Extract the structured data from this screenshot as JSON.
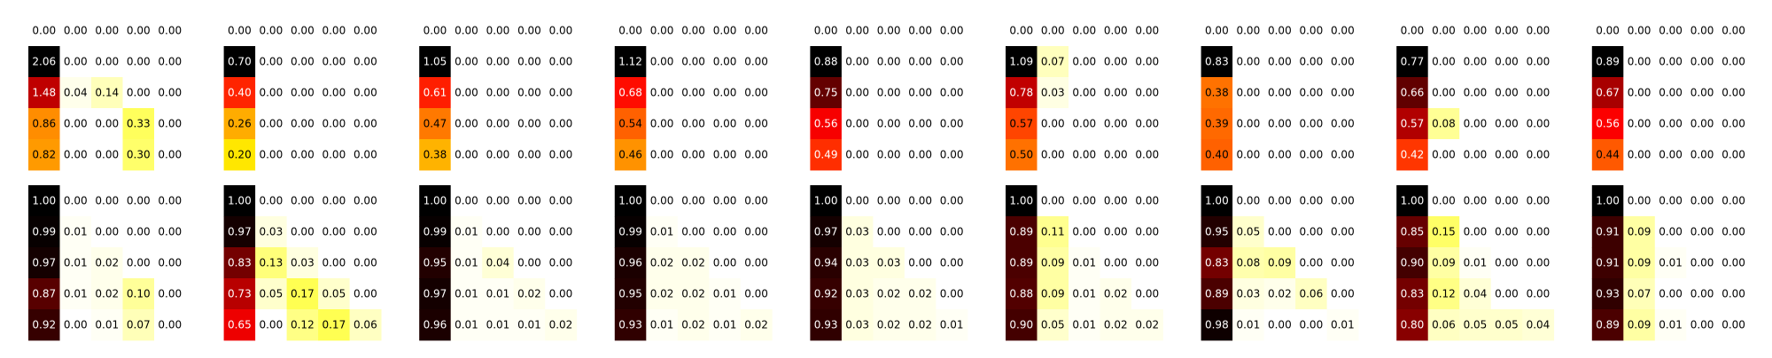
{
  "chart_data": {
    "type": "heatmap",
    "colormap": "hot_r",
    "grid": false,
    "value_format": "2 decimals",
    "rows": [
      [
        [
          [
            0.0,
            0.0,
            0.0,
            0.0,
            0.0
          ],
          [
            2.06,
            0.0,
            0.0,
            0.0,
            0.0
          ],
          [
            1.48,
            0.04,
            0.14,
            0.0,
            0.0
          ],
          [
            0.86,
            0.0,
            0.0,
            0.33,
            0.0
          ],
          [
            0.82,
            0.0,
            0.0,
            0.3,
            0.0
          ]
        ],
        [
          [
            0.0,
            0.0,
            0.0,
            0.0,
            0.0
          ],
          [
            0.7,
            0.0,
            0.0,
            0.0,
            0.0
          ],
          [
            0.4,
            0.0,
            0.0,
            0.0,
            0.0
          ],
          [
            0.26,
            0.0,
            0.0,
            0.0,
            0.0
          ],
          [
            0.2,
            0.0,
            0.0,
            0.0,
            0.0
          ]
        ],
        [
          [
            0.0,
            0.0,
            0.0,
            0.0,
            0.0
          ],
          [
            1.05,
            0.0,
            0.0,
            0.0,
            0.0
          ],
          [
            0.61,
            0.0,
            0.0,
            0.0,
            0.0
          ],
          [
            0.47,
            0.0,
            0.0,
            0.0,
            0.0
          ],
          [
            0.38,
            0.0,
            0.0,
            0.0,
            0.0
          ]
        ],
        [
          [
            0.0,
            0.0,
            0.0,
            0.0,
            0.0
          ],
          [
            1.12,
            0.0,
            0.0,
            0.0,
            0.0
          ],
          [
            0.68,
            0.0,
            0.0,
            0.0,
            0.0
          ],
          [
            0.54,
            0.0,
            0.0,
            0.0,
            0.0
          ],
          [
            0.46,
            0.0,
            0.0,
            0.0,
            0.0
          ]
        ],
        [
          [
            0.0,
            0.0,
            0.0,
            0.0,
            0.0
          ],
          [
            0.88,
            0.0,
            0.0,
            0.0,
            0.0
          ],
          [
            0.75,
            0.0,
            0.0,
            0.0,
            0.0
          ],
          [
            0.56,
            0.0,
            0.0,
            0.0,
            0.0
          ],
          [
            0.49,
            0.0,
            0.0,
            0.0,
            0.0
          ]
        ],
        [
          [
            0.0,
            0.0,
            0.0,
            0.0,
            0.0
          ],
          [
            1.09,
            0.07,
            0.0,
            0.0,
            0.0
          ],
          [
            0.78,
            0.03,
            0.0,
            0.0,
            0.0
          ],
          [
            0.57,
            0.0,
            0.0,
            0.0,
            0.0
          ],
          [
            0.5,
            0.0,
            0.0,
            0.0,
            0.0
          ]
        ],
        [
          [
            0.0,
            0.0,
            0.0,
            0.0,
            0.0
          ],
          [
            0.83,
            0.0,
            0.0,
            0.0,
            0.0
          ],
          [
            0.38,
            0.0,
            0.0,
            0.0,
            0.0
          ],
          [
            0.39,
            0.0,
            0.0,
            0.0,
            0.0
          ],
          [
            0.4,
            0.0,
            0.0,
            0.0,
            0.0
          ]
        ],
        [
          [
            0.0,
            0.0,
            0.0,
            0.0,
            0.0
          ],
          [
            0.77,
            0.0,
            0.0,
            0.0,
            0.0
          ],
          [
            0.66,
            0.0,
            0.0,
            0.0,
            0.0
          ],
          [
            0.57,
            0.08,
            0.0,
            0.0,
            0.0
          ],
          [
            0.42,
            0.0,
            0.0,
            0.0,
            0.0
          ]
        ],
        [
          [
            0.0,
            0.0,
            0.0,
            0.0,
            0.0
          ],
          [
            0.89,
            0.0,
            0.0,
            0.0,
            0.0
          ],
          [
            0.67,
            0.0,
            0.0,
            0.0,
            0.0
          ],
          [
            0.56,
            0.0,
            0.0,
            0.0,
            0.0
          ],
          [
            0.44,
            0.0,
            0.0,
            0.0,
            0.0
          ]
        ]
      ],
      [
        [
          [
            1.0,
            0.0,
            0.0,
            0.0,
            0.0
          ],
          [
            0.99,
            0.01,
            0.0,
            0.0,
            0.0
          ],
          [
            0.97,
            0.01,
            0.02,
            0.0,
            0.0
          ],
          [
            0.87,
            0.01,
            0.02,
            0.1,
            0.0
          ],
          [
            0.92,
            0.0,
            0.01,
            0.07,
            0.0
          ]
        ],
        [
          [
            1.0,
            0.0,
            0.0,
            0.0,
            0.0
          ],
          [
            0.97,
            0.03,
            0.0,
            0.0,
            0.0
          ],
          [
            0.83,
            0.13,
            0.03,
            0.0,
            0.0
          ],
          [
            0.73,
            0.05,
            0.17,
            0.05,
            0.0
          ],
          [
            0.65,
            0.0,
            0.12,
            0.17,
            0.06
          ]
        ],
        [
          [
            1.0,
            0.0,
            0.0,
            0.0,
            0.0
          ],
          [
            0.99,
            0.01,
            0.0,
            0.0,
            0.0
          ],
          [
            0.95,
            0.01,
            0.04,
            0.0,
            0.0
          ],
          [
            0.97,
            0.01,
            0.01,
            0.02,
            0.0
          ],
          [
            0.96,
            0.01,
            0.01,
            0.01,
            0.02
          ]
        ],
        [
          [
            1.0,
            0.0,
            0.0,
            0.0,
            0.0
          ],
          [
            0.99,
            0.01,
            0.0,
            0.0,
            0.0
          ],
          [
            0.96,
            0.02,
            0.02,
            0.0,
            0.0
          ],
          [
            0.95,
            0.02,
            0.02,
            0.01,
            0.0
          ],
          [
            0.93,
            0.01,
            0.02,
            0.01,
            0.02
          ]
        ],
        [
          [
            1.0,
            0.0,
            0.0,
            0.0,
            0.0
          ],
          [
            0.97,
            0.03,
            0.0,
            0.0,
            0.0
          ],
          [
            0.94,
            0.03,
            0.03,
            0.0,
            0.0
          ],
          [
            0.92,
            0.03,
            0.02,
            0.02,
            0.0
          ],
          [
            0.93,
            0.03,
            0.02,
            0.02,
            0.01
          ]
        ],
        [
          [
            1.0,
            0.0,
            0.0,
            0.0,
            0.0
          ],
          [
            0.89,
            0.11,
            0.0,
            0.0,
            0.0
          ],
          [
            0.89,
            0.09,
            0.01,
            0.0,
            0.0
          ],
          [
            0.88,
            0.09,
            0.01,
            0.02,
            0.0
          ],
          [
            0.9,
            0.05,
            0.01,
            0.02,
            0.02
          ]
        ],
        [
          [
            1.0,
            0.0,
            0.0,
            0.0,
            0.0
          ],
          [
            0.95,
            0.05,
            0.0,
            0.0,
            0.0
          ],
          [
            0.83,
            0.08,
            0.09,
            0.0,
            0.0
          ],
          [
            0.89,
            0.03,
            0.02,
            0.06,
            0.0
          ],
          [
            0.98,
            0.01,
            0.0,
            0.0,
            0.01
          ]
        ],
        [
          [
            1.0,
            0.0,
            0.0,
            0.0,
            0.0
          ],
          [
            0.85,
            0.15,
            0.0,
            0.0,
            0.0
          ],
          [
            0.9,
            0.09,
            0.01,
            0.0,
            0.0
          ],
          [
            0.83,
            0.12,
            0.04,
            0.0,
            0.0
          ],
          [
            0.8,
            0.06,
            0.05,
            0.05,
            0.04
          ]
        ],
        [
          [
            1.0,
            0.0,
            0.0,
            0.0,
            0.0
          ],
          [
            0.91,
            0.09,
            0.0,
            0.0,
            0.0
          ],
          [
            0.91,
            0.09,
            0.01,
            0.0,
            0.0
          ],
          [
            0.93,
            0.07,
            0.0,
            0.0,
            0.0
          ],
          [
            0.89,
            0.09,
            0.01,
            0.0,
            0.0
          ]
        ]
      ]
    ]
  }
}
